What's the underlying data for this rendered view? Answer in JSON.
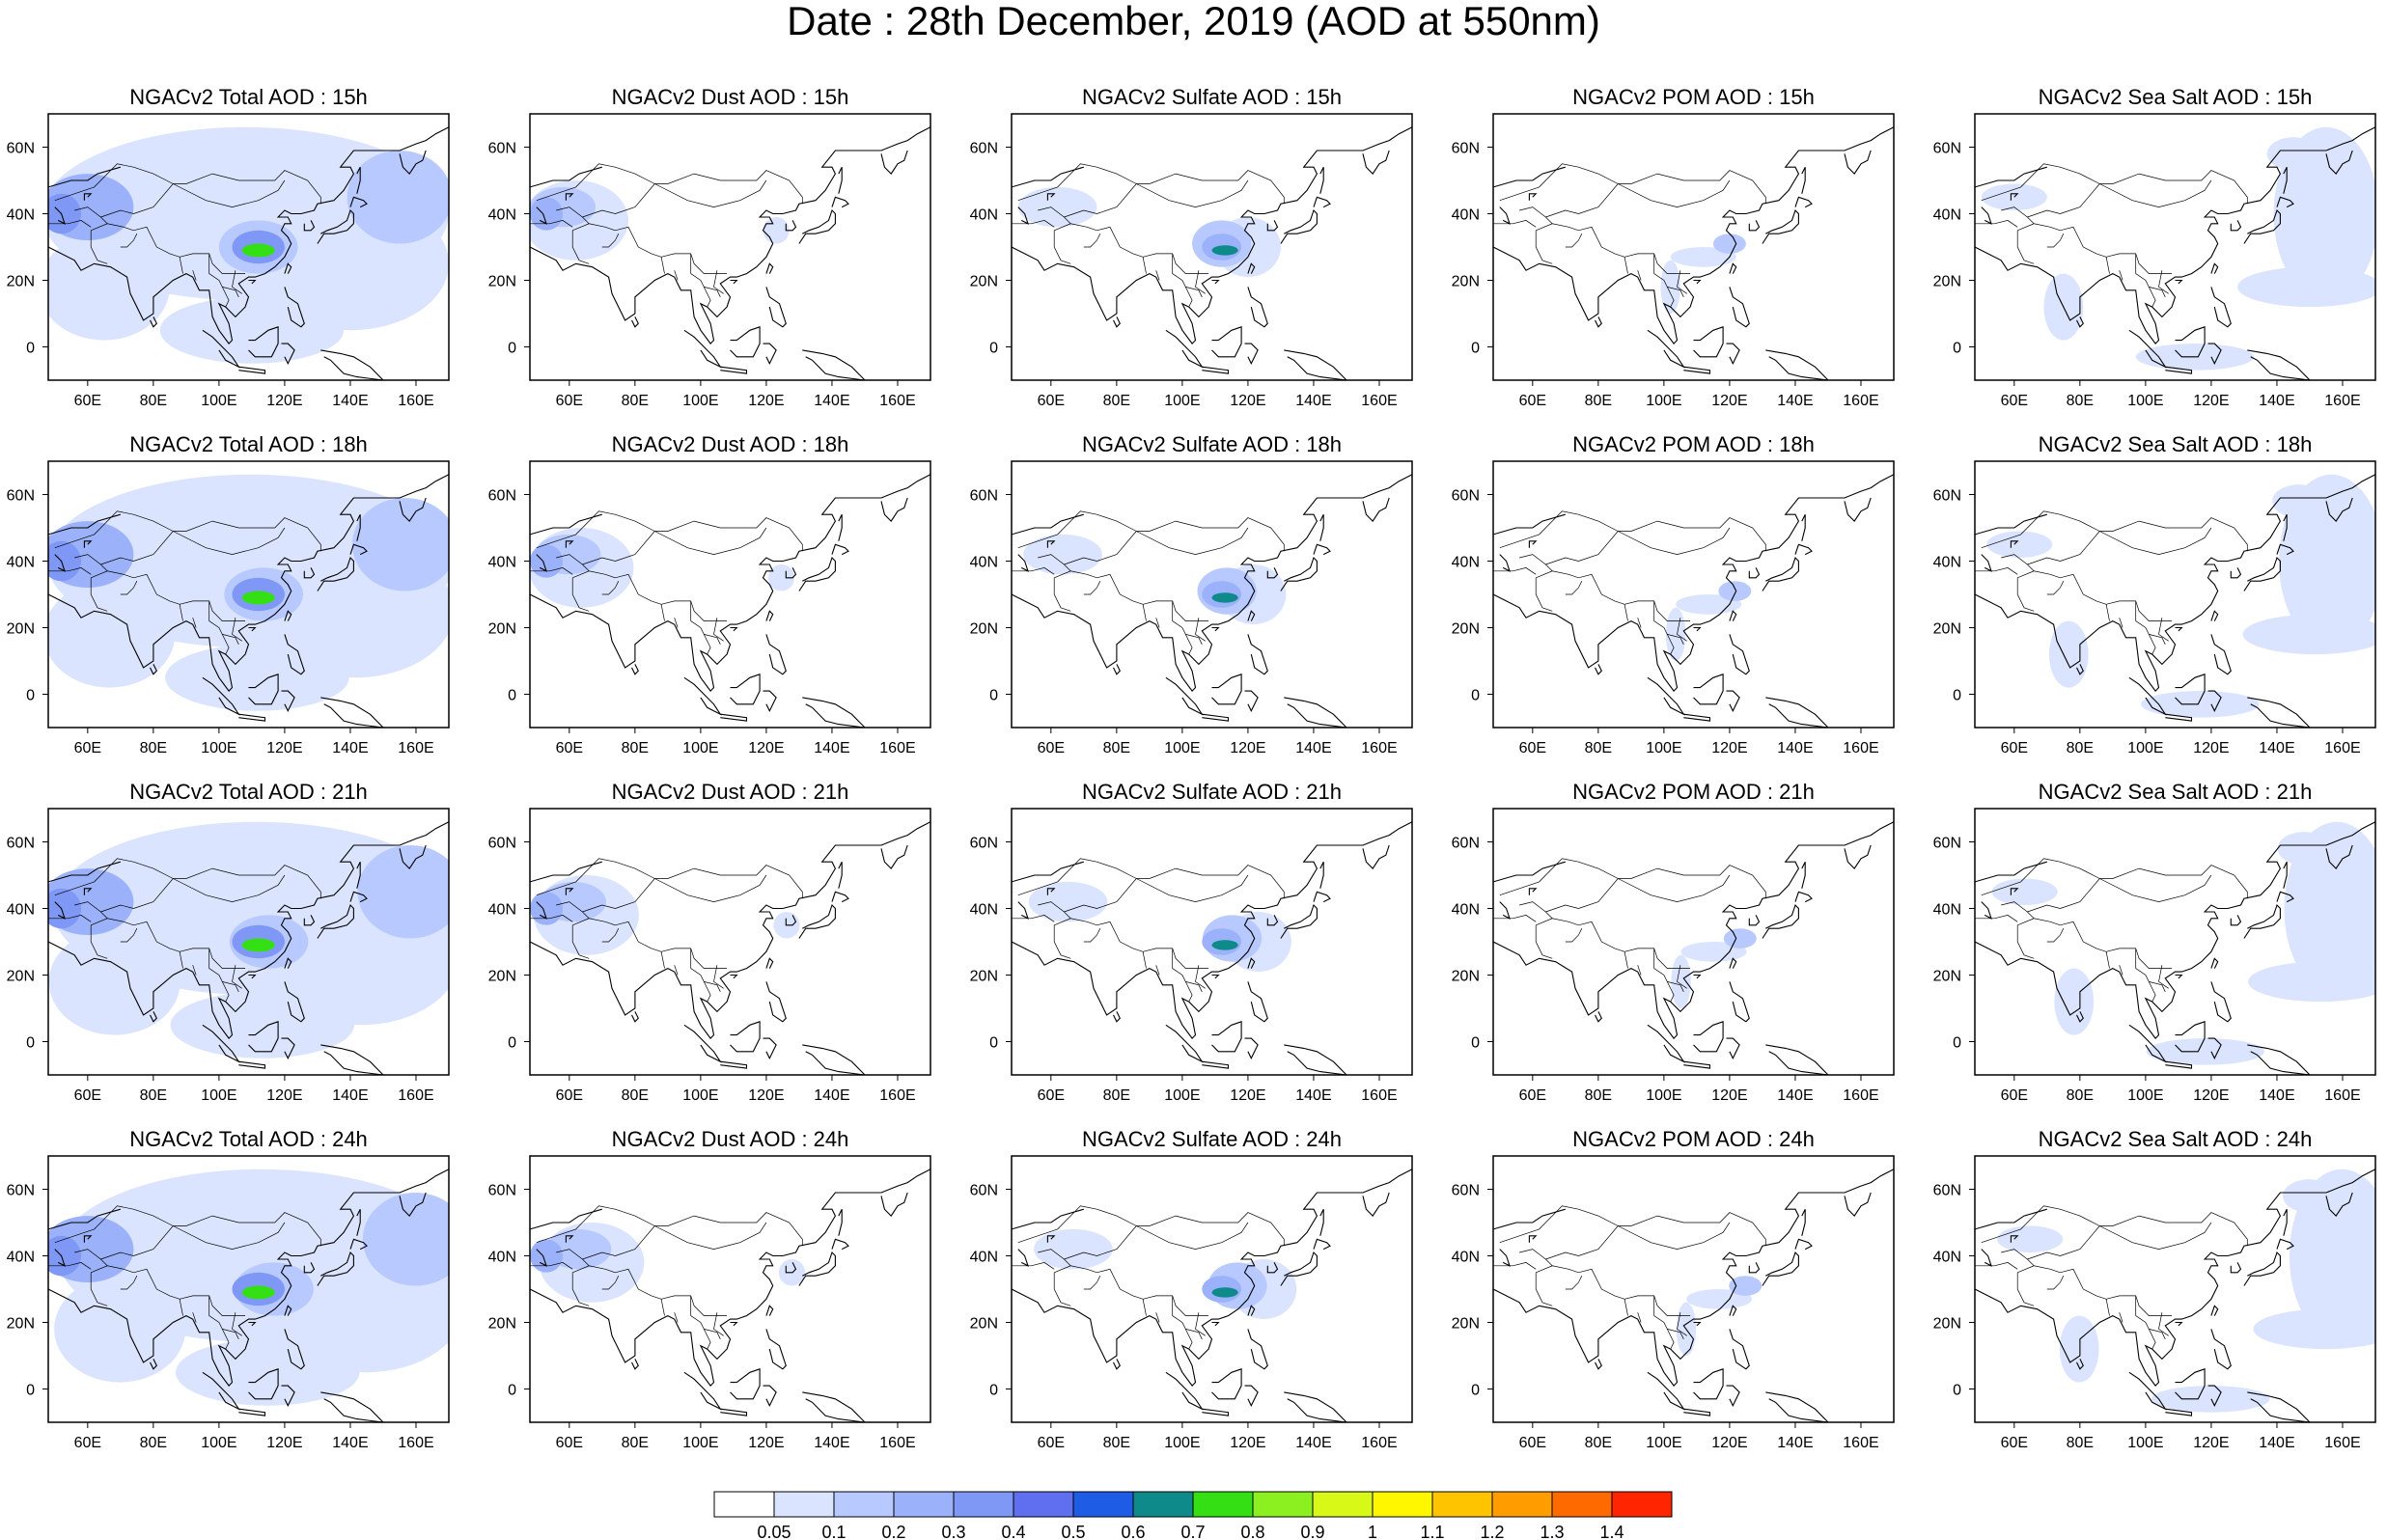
{
  "title": "Date : 28th December, 2019 (AOD at 550nm)",
  "axes": {
    "x_ticks": [
      "60E",
      "80E",
      "100E",
      "120E",
      "140E",
      "160E"
    ],
    "x_values": [
      60,
      80,
      100,
      120,
      140,
      160
    ],
    "y_ticks": [
      "60N",
      "40N",
      "20N",
      "0"
    ],
    "y_values": [
      60,
      40,
      20,
      0
    ],
    "lon_range": [
      48,
      170
    ],
    "lat_range": [
      -10,
      70
    ]
  },
  "colorbar": {
    "labels": [
      "0.05",
      "0.1",
      "0.2",
      "0.3",
      "0.4",
      "0.5",
      "0.6",
      "0.7",
      "0.8",
      "0.9",
      "1",
      "1.1",
      "1.2",
      "1.3",
      "1.4"
    ],
    "colors": [
      "#ffffff",
      "#dbe4ff",
      "#b8c9ff",
      "#9bb2fa",
      "#7f98f5",
      "#5f6ff0",
      "#1f5ce6",
      "#0f8a8a",
      "#34e014",
      "#8cf020",
      "#d8f818",
      "#fff700",
      "#ffc400",
      "#ff9d00",
      "#ff6a00",
      "#ff2500"
    ]
  },
  "rows": [
    {
      "hour": "15h",
      "panels": [
        {
          "title": "NGACv2 Total AOD : 15h",
          "kind": "total"
        },
        {
          "title": "NGACv2 Dust AOD : 15h",
          "kind": "dust"
        },
        {
          "title": "NGACv2 Sulfate AOD : 15h",
          "kind": "sulfate"
        },
        {
          "title": "NGACv2 POM AOD : 15h",
          "kind": "pom"
        },
        {
          "title": "NGACv2 Sea Salt AOD : 15h",
          "kind": "seasalt"
        }
      ]
    },
    {
      "hour": "18h",
      "panels": [
        {
          "title": "NGACv2 Total AOD : 18h",
          "kind": "total"
        },
        {
          "title": "NGACv2 Dust AOD : 18h",
          "kind": "dust"
        },
        {
          "title": "NGACv2 Sulfate AOD : 18h",
          "kind": "sulfate"
        },
        {
          "title": "NGACv2 POM AOD : 18h",
          "kind": "pom"
        },
        {
          "title": "NGACv2 Sea Salt AOD : 18h",
          "kind": "seasalt"
        }
      ]
    },
    {
      "hour": "21h",
      "panels": [
        {
          "title": "NGACv2 Total AOD : 21h",
          "kind": "total"
        },
        {
          "title": "NGACv2 Dust AOD : 21h",
          "kind": "dust"
        },
        {
          "title": "NGACv2 Sulfate AOD : 21h",
          "kind": "sulfate"
        },
        {
          "title": "NGACv2 POM AOD : 21h",
          "kind": "pom"
        },
        {
          "title": "NGACv2 Sea Salt AOD : 21h",
          "kind": "seasalt"
        }
      ]
    },
    {
      "hour": "24h",
      "panels": [
        {
          "title": "NGACv2 Total AOD : 24h",
          "kind": "total"
        },
        {
          "title": "NGACv2 Dust AOD : 24h",
          "kind": "dust"
        },
        {
          "title": "NGACv2 Sulfate AOD : 24h",
          "kind": "sulfate"
        },
        {
          "title": "NGACv2 POM AOD : 24h",
          "kind": "pom"
        },
        {
          "title": "NGACv2 Sea Salt  AOD : 24h",
          "kind": "seasalt"
        }
      ]
    }
  ]
}
